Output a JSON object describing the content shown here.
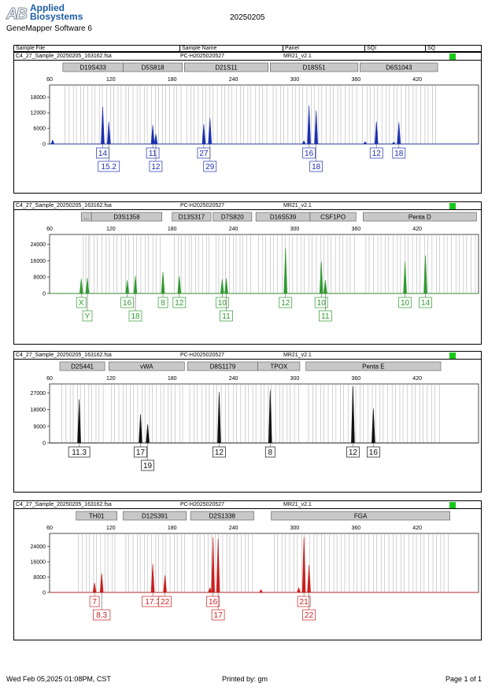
{
  "header": {
    "logo_line1": "Applied",
    "logo_line2": "Biosystems",
    "software": "GeneMapper Software 6",
    "date": "20250205"
  },
  "table_columns": [
    "Sample File",
    "Sample Name",
    "Panel",
    "SQI",
    "SQ"
  ],
  "colors": {
    "blue": "#1a2fb0",
    "green": "#2f9a2f",
    "black": "#111111",
    "red": "#cc1f1f",
    "quality_ok": "#19c91a"
  },
  "panels": [
    {
      "file": "C4_27_Sample_20250205_163162.fsa",
      "name": "PC-H2025020527",
      "panel": "MR21_v2.1",
      "color": "#1a2fb0",
      "ymax": 22000,
      "yticks": [
        0,
        6000,
        12000,
        18000
      ],
      "yticklabels": [
        "0",
        "6000",
        "12000",
        "18000"
      ],
      "loci": [
        {
          "name": "D19S433",
          "start": 73,
          "end": 132
        },
        {
          "name": "D5S818",
          "start": 132,
          "end": 190
        },
        {
          "name": "D21S11",
          "start": 192,
          "end": 274
        },
        {
          "name": "D18S51",
          "start": 276,
          "end": 362
        },
        {
          "name": "D6S1043",
          "start": 364,
          "end": 440
        }
      ],
      "peaks": [
        {
          "x": 112,
          "h": 14200,
          "label": "14",
          "row": 0
        },
        {
          "x": 118,
          "h": 8500,
          "label": "15.2",
          "row": 1
        },
        {
          "x": 161,
          "h": 7200,
          "label": "11",
          "row": 0
        },
        {
          "x": 164,
          "h": 3800,
          "label": "12",
          "row": 1
        },
        {
          "x": 211,
          "h": 7600,
          "label": "27",
          "row": 0
        },
        {
          "x": 217,
          "h": 10000,
          "label": "29",
          "row": 1
        },
        {
          "x": 314,
          "h": 14800,
          "label": "16",
          "row": 0
        },
        {
          "x": 321,
          "h": 12800,
          "label": "18",
          "row": 1
        },
        {
          "x": 380,
          "h": 8600,
          "label": "12",
          "row": 0
        },
        {
          "x": 402,
          "h": 8300,
          "label": "18",
          "row": 0
        }
      ],
      "small_peaks": [
        {
          "x": 63,
          "h": 1500
        },
        {
          "x": 309,
          "h": 1200
        },
        {
          "x": 369,
          "h": 900
        },
        {
          "x": 397,
          "h": 700
        }
      ]
    },
    {
      "file": "C4_27_Sample_20250205_163162.fsa",
      "name": "PC-H2025020527",
      "panel": "MR21_v2.1",
      "color": "#2f9a2f",
      "ymax": 28000,
      "yticks": [
        0,
        8000,
        16000,
        24000
      ],
      "yticklabels": [
        "0",
        "8000",
        "16000",
        "24000"
      ],
      "loci": [
        {
          "name": "...",
          "start": 91,
          "end": 101
        },
        {
          "name": "D3S1358",
          "start": 101,
          "end": 170
        },
        {
          "name": "D13S317",
          "start": 180,
          "end": 218
        },
        {
          "name": "D7S820",
          "start": 220,
          "end": 258
        },
        {
          "name": "D16S539",
          "start": 262,
          "end": 315
        },
        {
          "name": "CSF1PO",
          "start": 315,
          "end": 360
        },
        {
          "name": "Penta D",
          "start": 367,
          "end": 478
        }
      ],
      "peaks": [
        {
          "x": 91,
          "h": 7200,
          "label": "X",
          "row": 0
        },
        {
          "x": 97,
          "h": 7500,
          "label": "Y",
          "row": 1
        },
        {
          "x": 136,
          "h": 6500,
          "label": "16",
          "row": 0
        },
        {
          "x": 144,
          "h": 8600,
          "label": "18",
          "row": 1
        },
        {
          "x": 171,
          "h": 10600,
          "label": "8",
          "row": 0
        },
        {
          "x": 187,
          "h": 8500,
          "label": "12",
          "row": 0
        },
        {
          "x": 229,
          "h": 7000,
          "label": "10",
          "row": 0
        },
        {
          "x": 233,
          "h": 7400,
          "label": "11",
          "row": 1
        },
        {
          "x": 291,
          "h": 22000,
          "label": "12",
          "row": 0
        },
        {
          "x": 326,
          "h": 15500,
          "label": "10",
          "row": 0
        },
        {
          "x": 330,
          "h": 6500,
          "label": "11",
          "row": 1
        },
        {
          "x": 408,
          "h": 15500,
          "label": "10",
          "row": 0
        },
        {
          "x": 428,
          "h": 18500,
          "label": "14",
          "row": 0
        }
      ],
      "small_peaks": []
    },
    {
      "file": "C4_27_Sample_20250205_163162.fsa",
      "name": "PC-H2025020527",
      "panel": "MR21_v2.1",
      "color": "#111111",
      "ymax": 31000,
      "yticks": [
        0,
        9000,
        18000,
        27000
      ],
      "yticklabels": [
        "0",
        "9000",
        "18000",
        "27000"
      ],
      "loci": [
        {
          "name": "D2S441",
          "start": 70,
          "end": 114
        },
        {
          "name": "vWA",
          "start": 118,
          "end": 192
        },
        {
          "name": "D8S1179",
          "start": 195,
          "end": 264
        },
        {
          "name": "TPOX",
          "start": 264,
          "end": 305
        },
        {
          "name": "Penta E",
          "start": 311,
          "end": 443
        }
      ],
      "peaks": [
        {
          "x": 89,
          "h": 23500,
          "label": "11.3",
          "row": 0
        },
        {
          "x": 149,
          "h": 15500,
          "label": "17",
          "row": 0
        },
        {
          "x": 156,
          "h": 10000,
          "label": "19",
          "row": 1
        },
        {
          "x": 226,
          "h": 27500,
          "label": "12",
          "row": 0
        },
        {
          "x": 276,
          "h": 28500,
          "label": "8",
          "row": 0
        },
        {
          "x": 357,
          "h": 30500,
          "label": "12",
          "row": 0
        },
        {
          "x": 377,
          "h": 18500,
          "label": "16",
          "row": 0
        }
      ],
      "small_peaks": []
    },
    {
      "file": "C4_27_Sample_20250205_163162.fsa",
      "name": "PC-H2025020527",
      "panel": "MR21_v2.1",
      "color": "#cc1f1f",
      "ymax": 30000,
      "yticks": [
        0,
        8000,
        16000,
        24000
      ],
      "yticklabels": [
        "0",
        "8000",
        "16000",
        "24000"
      ],
      "loci": [
        {
          "name": "TH01",
          "start": 86,
          "end": 126
        },
        {
          "name": "D12S391",
          "start": 132,
          "end": 194
        },
        {
          "name": "D2S1338",
          "start": 198,
          "end": 260
        },
        {
          "name": "FGA",
          "start": 277,
          "end": 452
        }
      ],
      "peaks": [
        {
          "x": 104,
          "h": 5000,
          "label": "7",
          "row": 0
        },
        {
          "x": 111,
          "h": 10000,
          "label": "8.3",
          "row": 1
        },
        {
          "x": 161,
          "h": 15000,
          "label": "17.3",
          "row": 0
        },
        {
          "x": 173,
          "h": 9000,
          "label": "22",
          "row": 0
        },
        {
          "x": 220,
          "h": 29000,
          "label": "16",
          "row": 0
        },
        {
          "x": 225,
          "h": 28000,
          "label": "17",
          "row": 1
        },
        {
          "x": 309,
          "h": 29000,
          "label": "21",
          "row": 0
        },
        {
          "x": 314,
          "h": 14500,
          "label": "22",
          "row": 1
        }
      ],
      "small_peaks": [
        {
          "x": 217,
          "h": 2500
        },
        {
          "x": 304,
          "h": 2500
        },
        {
          "x": 267,
          "h": 1500
        }
      ]
    }
  ],
  "x_ticks": [
    "60",
    "120",
    "180",
    "240",
    "300",
    "360",
    "420"
  ],
  "footer": {
    "printed_date": "Wed Feb 05,2025 01:08PM, CST",
    "printed_by": "Printed by: gm",
    "page": "Page 1 of 1"
  },
  "chart_data": [
    {
      "type": "line",
      "title": "",
      "xlabel": "",
      "ylabel": "",
      "xlim": [
        60,
        480
      ],
      "ylim": [
        0,
        22000
      ],
      "series": [
        {
          "values": [
            [
              112,
              14200
            ],
            [
              118,
              8500
            ],
            [
              161,
              7200
            ],
            [
              164,
              3800
            ],
            [
              211,
              7600
            ],
            [
              217,
              10000
            ],
            [
              314,
              14800
            ],
            [
              321,
              12800
            ],
            [
              380,
              8600
            ],
            [
              402,
              8300
            ]
          ]
        }
      ],
      "categories": [
        "D19S433",
        "D5S818",
        "D21S11",
        "D18S51",
        "D6S1043"
      ]
    },
    {
      "type": "line",
      "title": "",
      "xlabel": "",
      "ylabel": "",
      "xlim": [
        60,
        480
      ],
      "ylim": [
        0,
        28000
      ],
      "series": [
        {
          "values": [
            [
              91,
              7200
            ],
            [
              97,
              7500
            ],
            [
              136,
              6500
            ],
            [
              144,
              8600
            ],
            [
              171,
              10600
            ],
            [
              187,
              8500
            ],
            [
              229,
              7000
            ],
            [
              233,
              7400
            ],
            [
              291,
              22000
            ],
            [
              326,
              15500
            ],
            [
              330,
              6500
            ],
            [
              408,
              15500
            ],
            [
              428,
              18500
            ]
          ]
        }
      ],
      "categories": [
        "D3S1358",
        "D13S317",
        "D7S820",
        "D16S539",
        "CSF1PO",
        "Penta D"
      ]
    },
    {
      "type": "line",
      "title": "",
      "xlabel": "",
      "ylabel": "",
      "xlim": [
        60,
        480
      ],
      "ylim": [
        0,
        31000
      ],
      "series": [
        {
          "values": [
            [
              89,
              23500
            ],
            [
              149,
              15500
            ],
            [
              156,
              10000
            ],
            [
              226,
              27500
            ],
            [
              276,
              28500
            ],
            [
              357,
              30500
            ],
            [
              377,
              18500
            ]
          ]
        }
      ],
      "categories": [
        "D2S441",
        "vWA",
        "D8S1179",
        "TPOX",
        "Penta E"
      ]
    },
    {
      "type": "line",
      "title": "",
      "xlabel": "",
      "ylabel": "",
      "xlim": [
        60,
        480
      ],
      "ylim": [
        0,
        30000
      ],
      "series": [
        {
          "values": [
            [
              104,
              5000
            ],
            [
              111,
              10000
            ],
            [
              161,
              15000
            ],
            [
              173,
              9000
            ],
            [
              220,
              29000
            ],
            [
              225,
              28000
            ],
            [
              309,
              29000
            ],
            [
              314,
              14500
            ]
          ]
        }
      ],
      "categories": [
        "TH01",
        "D12S391",
        "D2S1338",
        "FGA"
      ]
    }
  ]
}
